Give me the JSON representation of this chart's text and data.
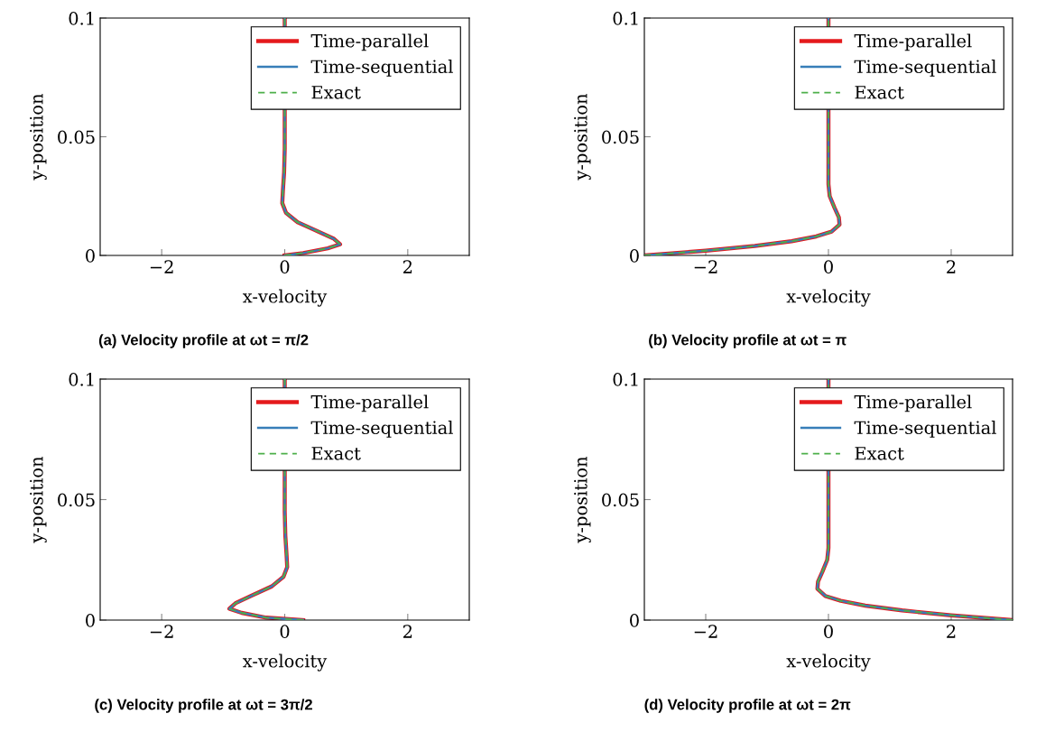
{
  "chart_data": [
    {
      "type": "line",
      "title": "(a) Velocity profile at ωt = π/2",
      "xlabel": "x-velocity",
      "ylabel": "y-position",
      "orientation": "horizontal",
      "xlim": [
        -3,
        3
      ],
      "xticks": [
        -2,
        0,
        2
      ],
      "ylim": [
        0,
        0.1
      ],
      "yticks": [
        0,
        0.05,
        0.1
      ],
      "grid": false,
      "legend": "top right",
      "x": [
        0,
        0.001,
        0.003,
        0.0047,
        0.007,
        0.01,
        0.014,
        0.018,
        0.022,
        0.027,
        0.035,
        0.045,
        0.1
      ],
      "series": [
        {
          "name": "Time-parallel",
          "color": "#e41a1c",
          "line_style": "solid",
          "values": [
            0,
            0.3,
            0.7,
            0.9,
            0.8,
            0.55,
            0.21,
            0.02,
            -0.04,
            -0.03,
            -0.01,
            0,
            0
          ]
        },
        {
          "name": "Time-sequential",
          "color": "#377eb8",
          "line_style": "solid",
          "values": [
            0,
            0.3,
            0.7,
            0.9,
            0.8,
            0.55,
            0.21,
            0.02,
            -0.04,
            -0.03,
            -0.01,
            0,
            0
          ]
        },
        {
          "name": "Exact",
          "color": "#4daf4a",
          "line_style": "dashed",
          "values": [
            0,
            0.3,
            0.7,
            0.9,
            0.8,
            0.55,
            0.21,
            0.02,
            -0.04,
            -0.03,
            -0.01,
            0,
            0
          ]
        }
      ]
    },
    {
      "type": "line",
      "title": "(b) Velocity profile at ωt = π",
      "xlabel": "x-velocity",
      "ylabel": "y-position",
      "orientation": "horizontal",
      "xlim": [
        -3,
        3
      ],
      "xticks": [
        -2,
        0,
        2
      ],
      "ylim": [
        0,
        0.1
      ],
      "yticks": [
        0,
        0.05,
        0.1
      ],
      "grid": false,
      "legend": "top right",
      "x": [
        0,
        0.002,
        0.004,
        0.006,
        0.008,
        0.01,
        0.013,
        0.016,
        0.02,
        0.025,
        0.03,
        0.1
      ],
      "series": [
        {
          "name": "Time-parallel",
          "color": "#e41a1c",
          "line_style": "solid",
          "values": [
            -3,
            -2,
            -1.2,
            -0.6,
            -0.2,
            0.05,
            0.18,
            0.17,
            0.1,
            0.02,
            0,
            0
          ]
        },
        {
          "name": "Time-sequential",
          "color": "#377eb8",
          "line_style": "solid",
          "values": [
            -3,
            -2,
            -1.2,
            -0.6,
            -0.2,
            0.05,
            0.18,
            0.17,
            0.1,
            0.02,
            0,
            0
          ]
        },
        {
          "name": "Exact",
          "color": "#4daf4a",
          "line_style": "dashed",
          "values": [
            -3,
            -2,
            -1.2,
            -0.6,
            -0.2,
            0.05,
            0.18,
            0.17,
            0.1,
            0.02,
            0,
            0
          ]
        }
      ]
    },
    {
      "type": "line",
      "title": "(c) Velocity profile at ωt = 3π/2",
      "xlabel": "x-velocity",
      "ylabel": "y-position",
      "orientation": "horizontal",
      "xlim": [
        -3,
        3
      ],
      "xticks": [
        -2,
        0,
        2
      ],
      "ylim": [
        0,
        0.1
      ],
      "yticks": [
        0,
        0.05,
        0.1
      ],
      "grid": false,
      "legend": "top right",
      "x": [
        0,
        0.001,
        0.003,
        0.0047,
        0.007,
        0.01,
        0.014,
        0.018,
        0.022,
        0.027,
        0.035,
        0.045,
        0.1
      ],
      "series": [
        {
          "name": "Time-parallel",
          "color": "#e41a1c",
          "line_style": "solid",
          "values": [
            0.3,
            -0.3,
            -0.7,
            -0.9,
            -0.8,
            -0.55,
            -0.21,
            -0.02,
            0.04,
            0.03,
            0.01,
            0,
            0
          ]
        },
        {
          "name": "Time-sequential",
          "color": "#377eb8",
          "line_style": "solid",
          "values": [
            0.3,
            -0.3,
            -0.7,
            -0.9,
            -0.8,
            -0.55,
            -0.21,
            -0.02,
            0.04,
            0.03,
            0.01,
            0,
            0
          ]
        },
        {
          "name": "Exact",
          "color": "#4daf4a",
          "line_style": "dashed",
          "values": [
            0.3,
            -0.3,
            -0.7,
            -0.9,
            -0.8,
            -0.55,
            -0.21,
            -0.02,
            0.04,
            0.03,
            0.01,
            0,
            0
          ]
        }
      ]
    },
    {
      "type": "line",
      "title": "(d) Velocity profile at ωt = 2π",
      "xlabel": "x-velocity",
      "ylabel": "y-position",
      "orientation": "horizontal",
      "xlim": [
        -3,
        3
      ],
      "xticks": [
        -2,
        0,
        2
      ],
      "ylim": [
        0,
        0.1
      ],
      "yticks": [
        0,
        0.05,
        0.1
      ],
      "grid": false,
      "legend": "top right",
      "x": [
        0,
        0.002,
        0.004,
        0.006,
        0.008,
        0.01,
        0.013,
        0.016,
        0.02,
        0.025,
        0.03,
        0.1
      ],
      "series": [
        {
          "name": "Time-parallel",
          "color": "#e41a1c",
          "line_style": "solid",
          "values": [
            3,
            2,
            1.2,
            0.6,
            0.2,
            -0.05,
            -0.18,
            -0.17,
            -0.1,
            -0.02,
            0,
            0
          ]
        },
        {
          "name": "Time-sequential",
          "color": "#377eb8",
          "line_style": "solid",
          "values": [
            3,
            2,
            1.2,
            0.6,
            0.2,
            -0.05,
            -0.18,
            -0.17,
            -0.1,
            -0.02,
            0,
            0
          ]
        },
        {
          "name": "Exact",
          "color": "#4daf4a",
          "line_style": "dashed",
          "values": [
            3,
            2,
            1.2,
            0.6,
            0.2,
            -0.05,
            -0.18,
            -0.17,
            -0.1,
            -0.02,
            0,
            0
          ]
        }
      ]
    }
  ]
}
